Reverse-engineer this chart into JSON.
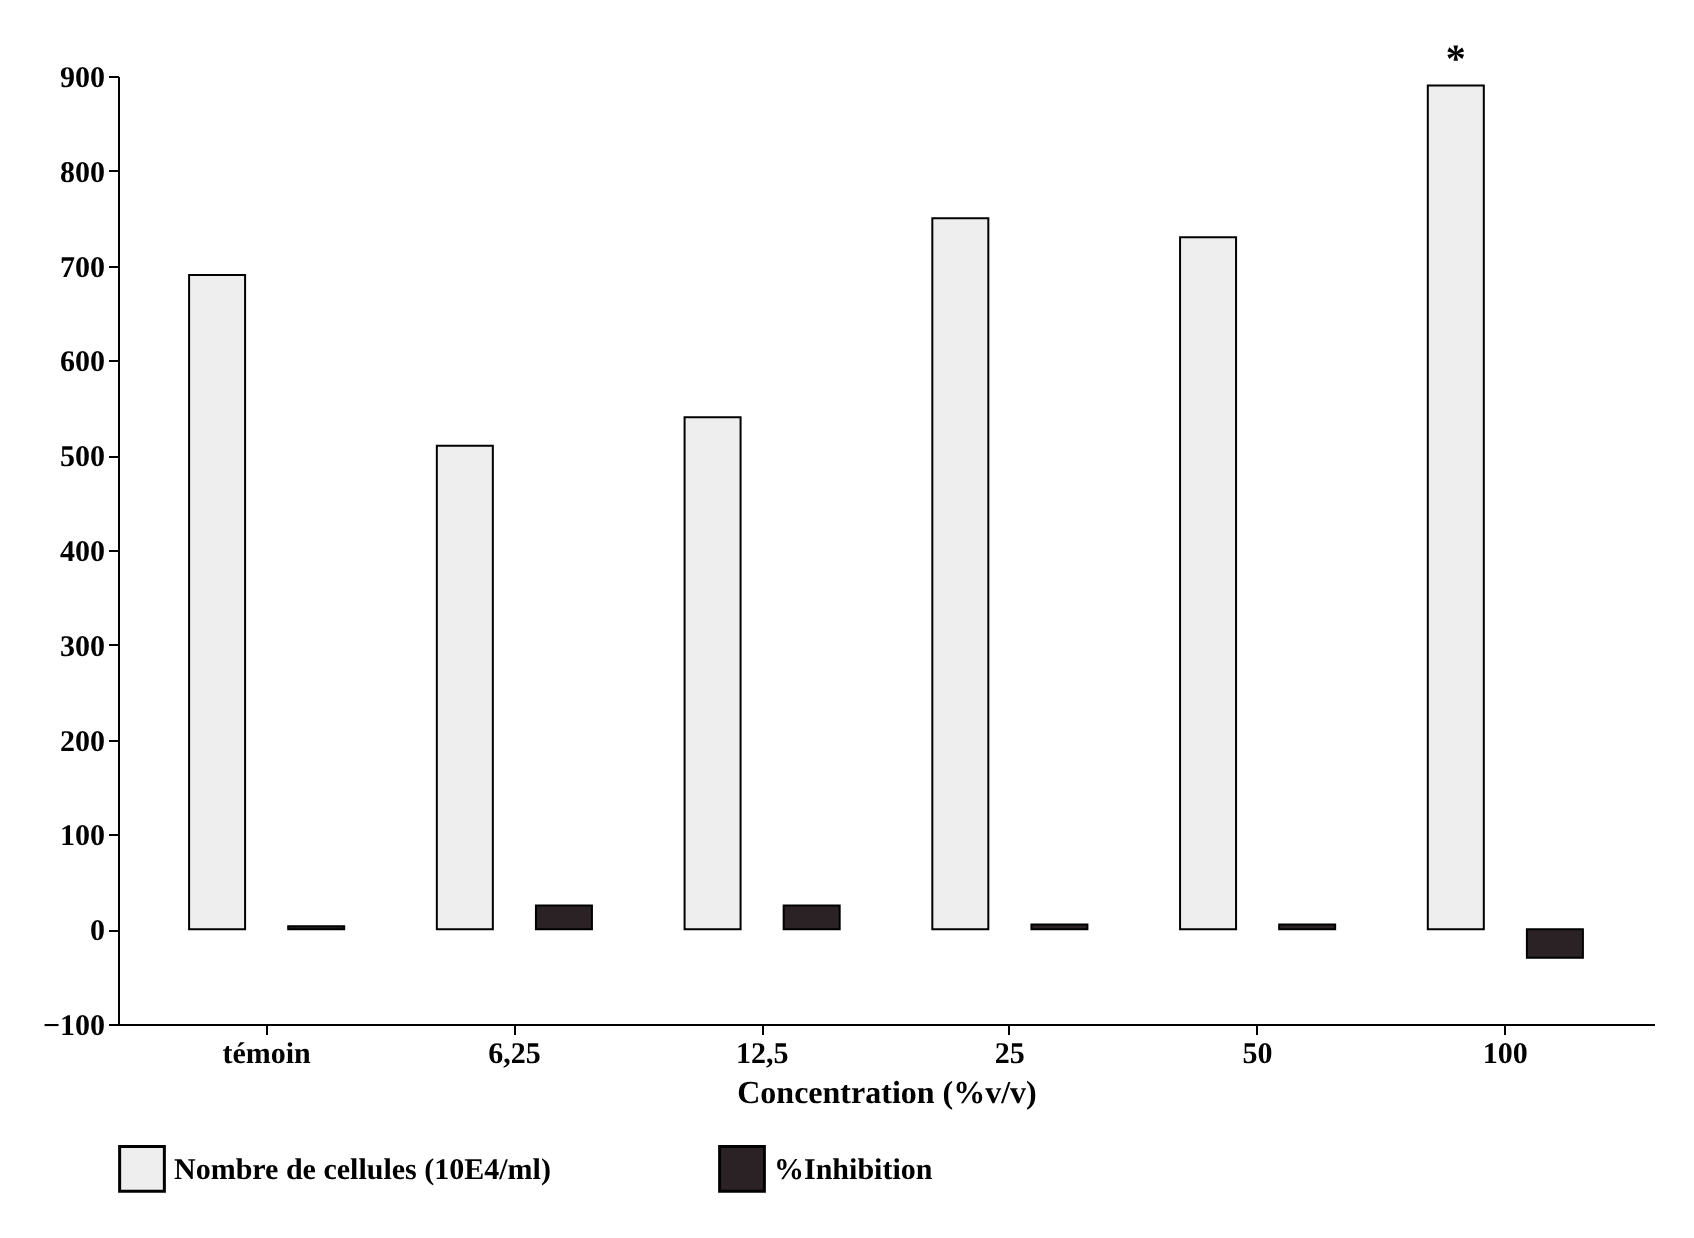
{
  "chart_data": {
    "type": "bar",
    "xlabel": "Concentration (%v/v)",
    "categories": [
      "témoin",
      "6,25",
      "12,5",
      "25",
      "50",
      "100"
    ],
    "series": [
      {
        "name": "Nombre de cellules (10E4/ml)",
        "color": "#eeeeee",
        "values": [
          690,
          510,
          540,
          750,
          730,
          890
        ]
      },
      {
        "name": "%Inhibition",
        "color": "#2b2226",
        "values": [
          3,
          25,
          25,
          5,
          5,
          -30
        ]
      }
    ],
    "ylim": [
      -100,
      900
    ],
    "yticks": [
      -100,
      0,
      100,
      200,
      300,
      400,
      500,
      600,
      700,
      800,
      900
    ],
    "annotations": [
      "*"
    ],
    "grid": false,
    "legend": "bottom"
  }
}
